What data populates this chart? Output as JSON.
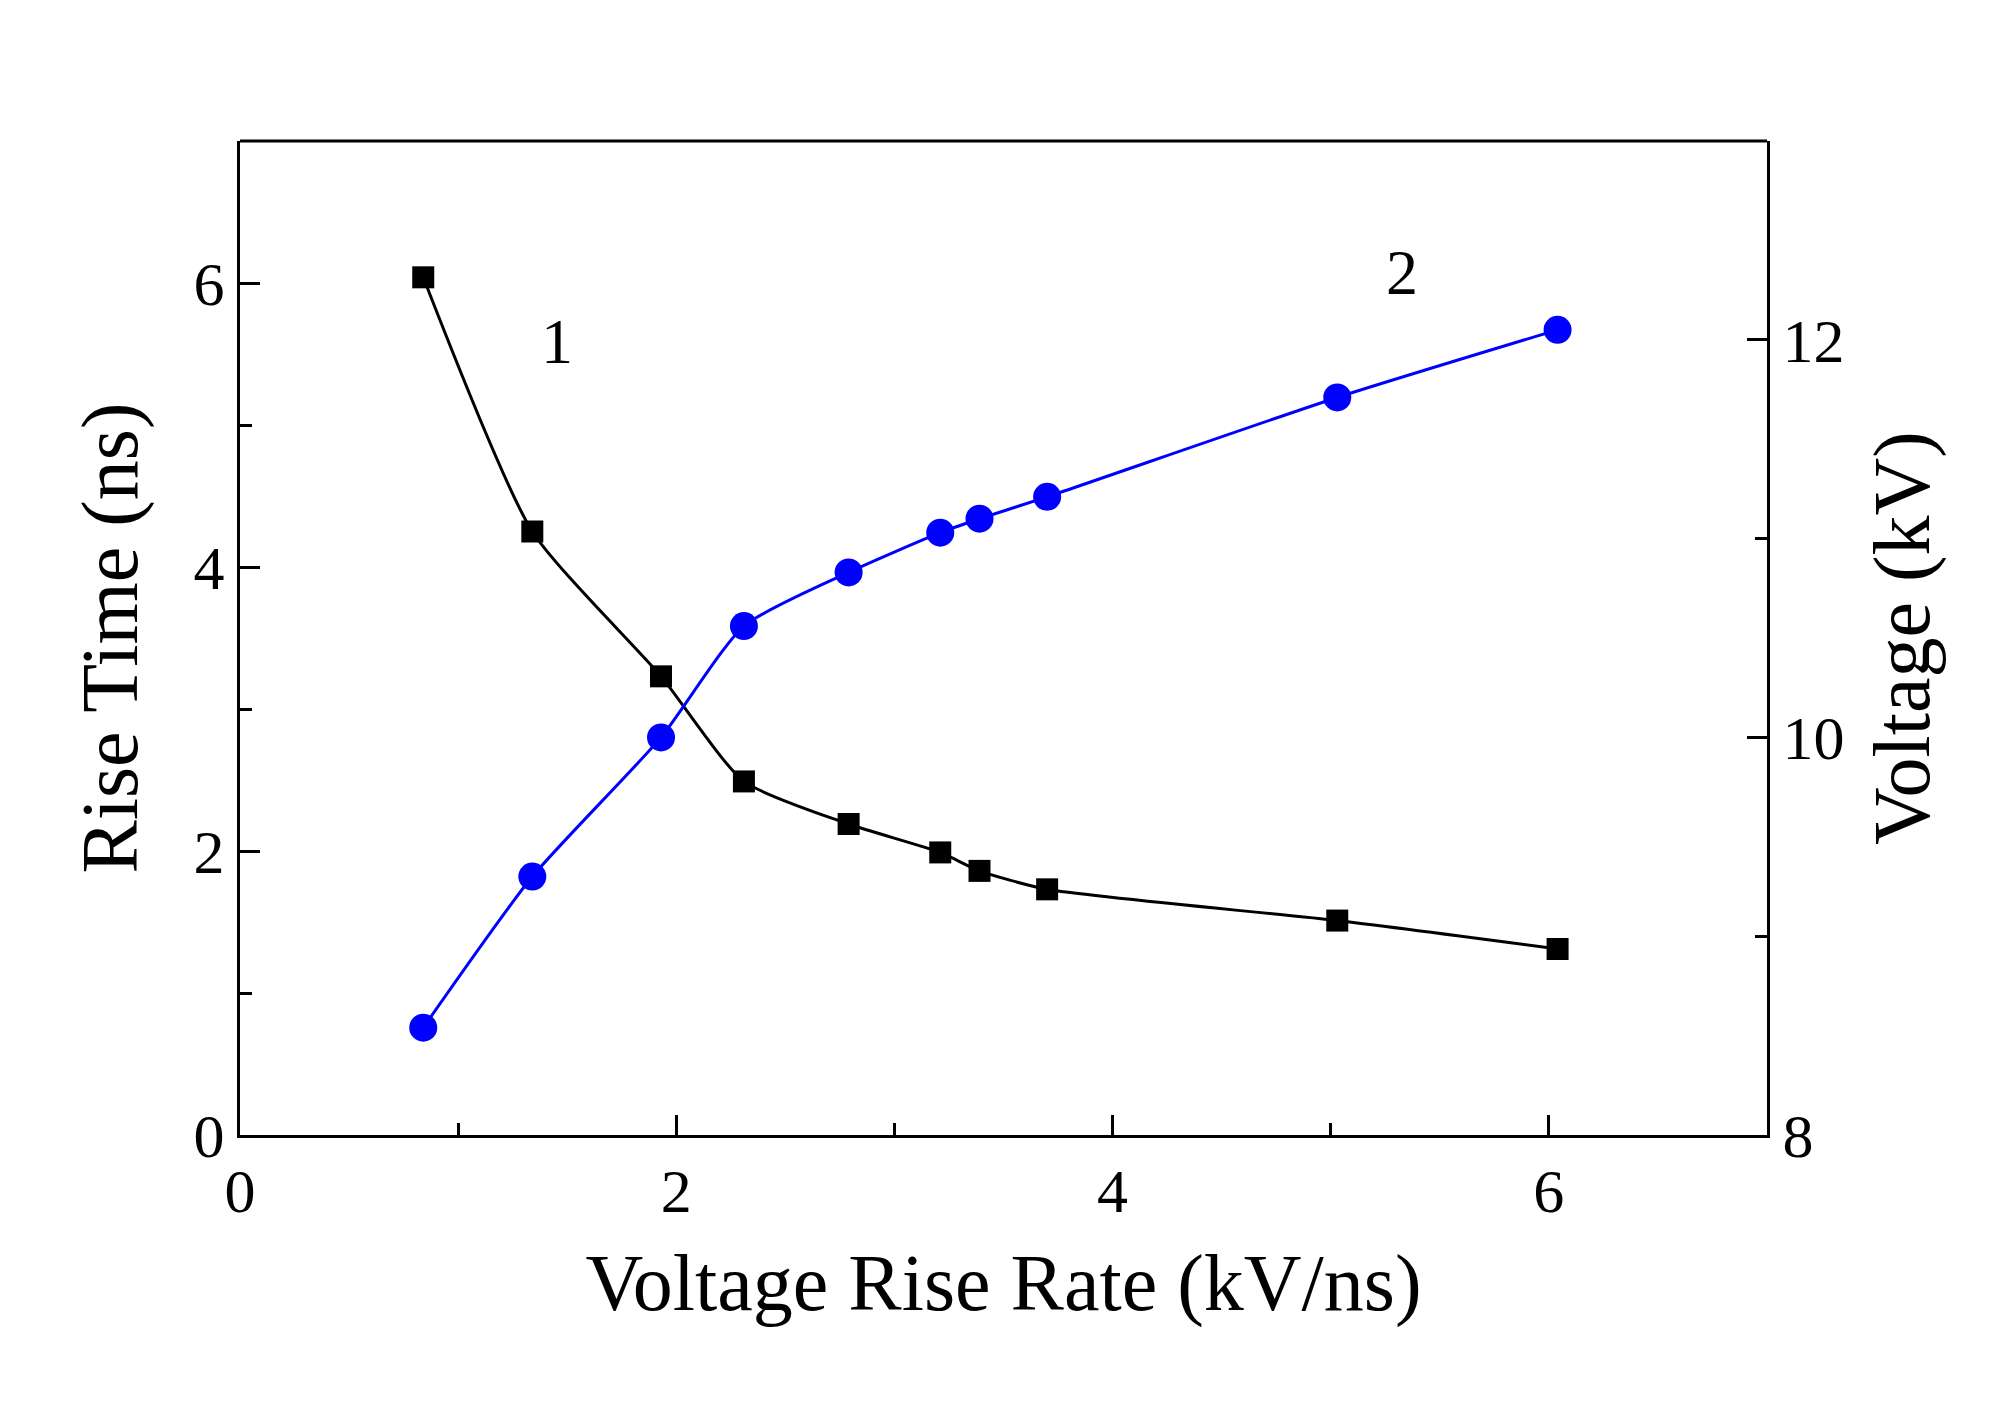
{
  "chart_data": {
    "type": "line",
    "xlabel": "Voltage Rise Rate (kV/ns)",
    "ylabel": "Rise Time (ns)",
    "y2label": "Voltage (kV)",
    "series": [
      {
        "name": "1",
        "color": "#000000",
        "marker": "square",
        "x": [
          0.84,
          1.34,
          1.93,
          2.31,
          2.79,
          3.21,
          3.39,
          3.7,
          5.03,
          6.04
        ],
        "values": [
          6.04,
          4.25,
          3.23,
          2.49,
          2.19,
          1.99,
          1.86,
          1.73,
          1.51,
          1.31
        ]
      },
      {
        "name": "2",
        "color": "#0000ff",
        "marker": "circle",
        "axis": "y2",
        "x": [
          0.84,
          1.34,
          1.93,
          2.31,
          2.79,
          3.21,
          3.39,
          3.7,
          5.03,
          6.04
        ],
        "values": [
          8.54,
          9.3,
          10.0,
          10.56,
          10.83,
          11.03,
          11.1,
          11.21,
          11.71,
          12.05
        ]
      }
    ],
    "xlim": [
      0,
      7
    ],
    "xticks": [
      0,
      {
        "value": 1,
        "label": null
      },
      2,
      {
        "value": 3,
        "label": null
      },
      4,
      {
        "value": 5,
        "label": null
      },
      6
    ],
    "ylim": [
      0,
      7
    ],
    "yticks": [
      0,
      {
        "value": 1,
        "label": null
      },
      2,
      {
        "value": 3,
        "label": null
      },
      4,
      {
        "value": 5,
        "label": null
      },
      6
    ],
    "y2lim": [
      8,
      13
    ],
    "y2ticks": [
      8,
      {
        "value": 9,
        "label": null
      },
      10,
      {
        "value": 11,
        "label": null
      },
      12
    ],
    "grid": false,
    "legend": false
  }
}
